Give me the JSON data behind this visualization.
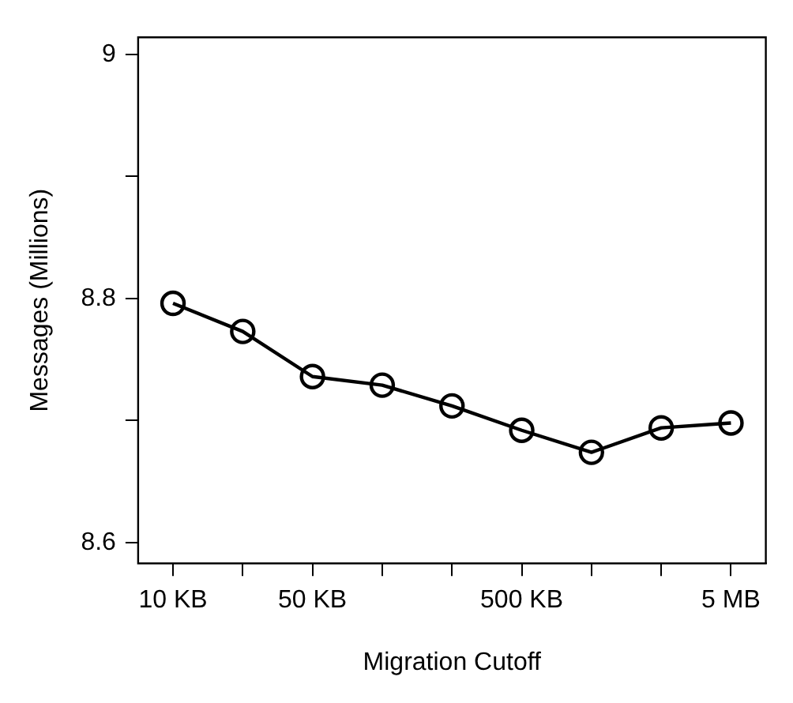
{
  "chart_data": {
    "type": "line",
    "xlabel": "Migration Cutoff",
    "ylabel": "Messages (Millions)",
    "categories": [
      "10 KB",
      null,
      "50 KB",
      null,
      null,
      "500 KB",
      null,
      null,
      "5 MB"
    ],
    "series": [
      {
        "color": "#000000",
        "values": [
          8.796,
          8.773,
          8.736,
          8.729,
          8.712,
          8.692,
          8.674,
          8.694,
          8.698
        ]
      }
    ],
    "ylim": [
      8.583,
      9.014
    ],
    "yticks": [
      8.6,
      {
        "value": 8.7,
        "label": null
      },
      8.8,
      {
        "value": 8.9,
        "label": null
      },
      9
    ],
    "marker": "circle",
    "line_style": "solid",
    "grid": false,
    "legend": false
  }
}
